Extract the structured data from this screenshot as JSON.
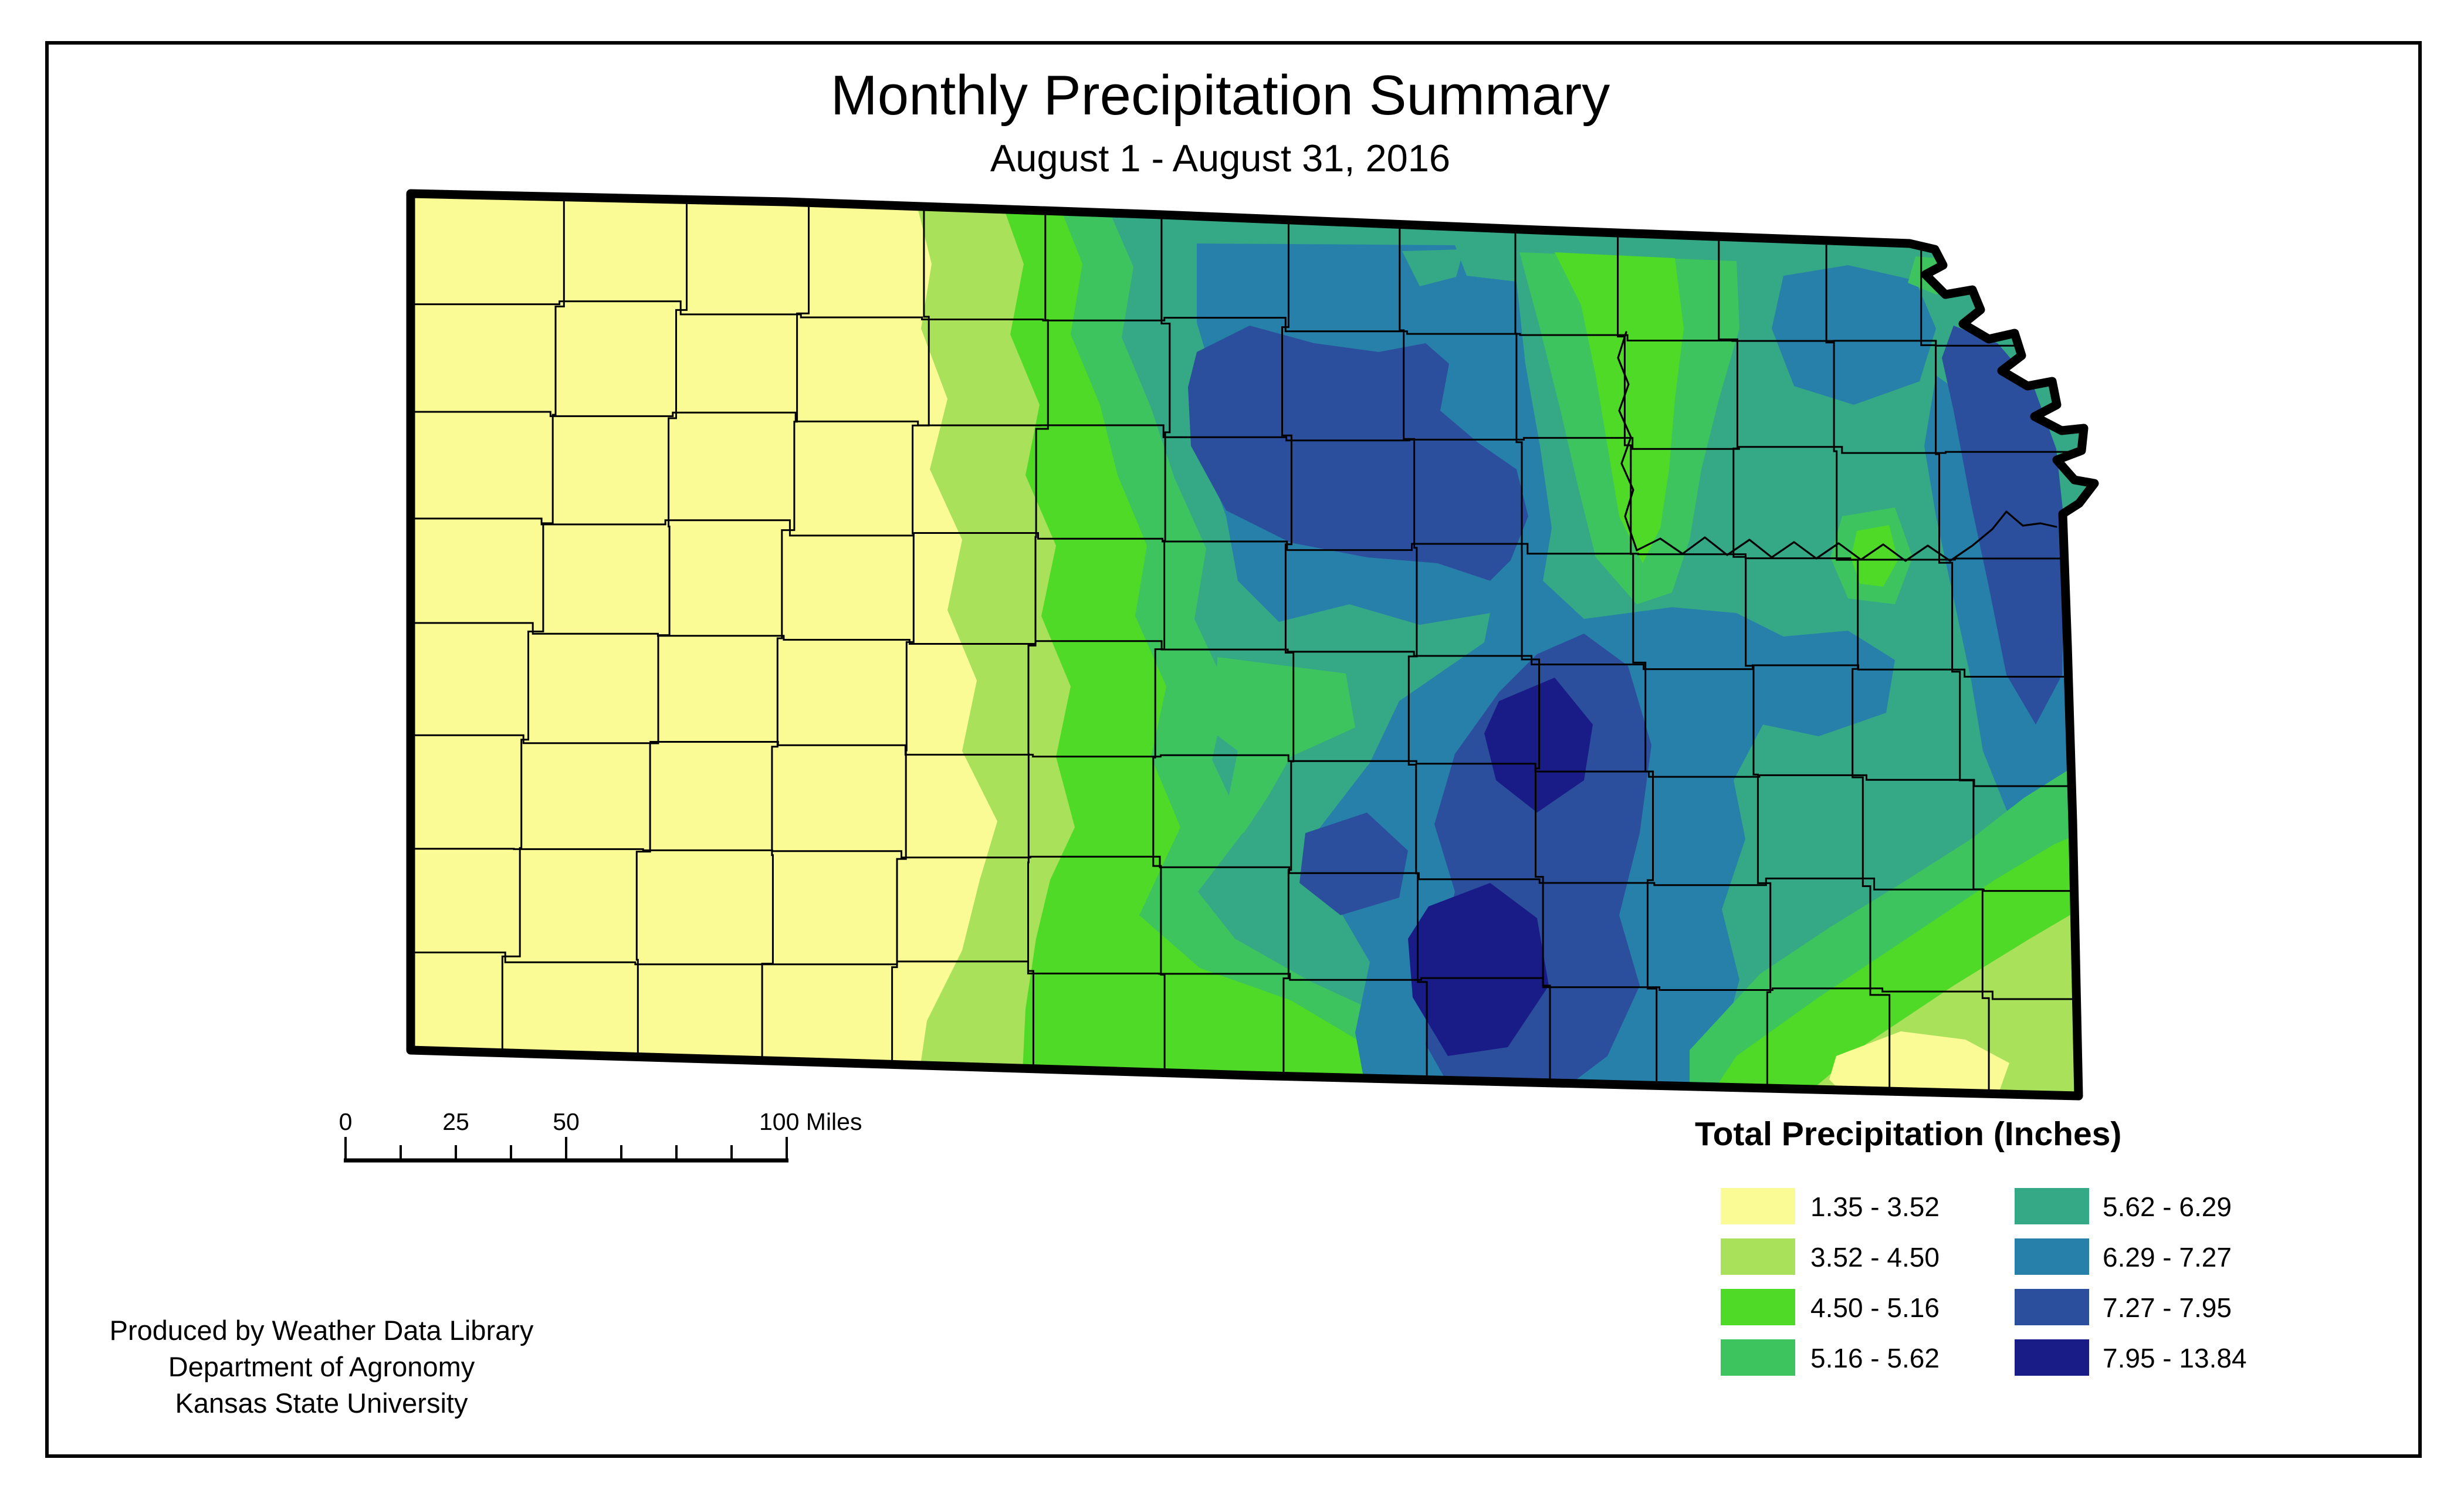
{
  "title": "Monthly Precipitation Summary",
  "subtitle": "August 1 - August 31, 2016",
  "legend": {
    "title": "Total Precipitation (Inches)",
    "items": [
      {
        "label": "1.35 - 3.52",
        "color": "#FBFB95"
      },
      {
        "label": "3.52 - 4.50",
        "color": "#A9E15A"
      },
      {
        "label": "4.50 - 5.16",
        "color": "#4EDA26"
      },
      {
        "label": "5.16 - 5.62",
        "color": "#3DC45F"
      },
      {
        "label": "5.62 - 6.29",
        "color": "#35A885"
      },
      {
        "label": "6.29 - 7.27",
        "color": "#2780AA"
      },
      {
        "label": "7.27 - 7.95",
        "color": "#2C4F9D"
      },
      {
        "label": "7.95 - 13.84",
        "color": "#191C87"
      }
    ]
  },
  "scalebar": {
    "labels": [
      "0",
      "25",
      "50",
      "100 Miles"
    ]
  },
  "credits": {
    "line1": "Produced by Weather Data Library",
    "line2": "Department of Agronomy",
    "line3": "Kansas State University"
  }
}
